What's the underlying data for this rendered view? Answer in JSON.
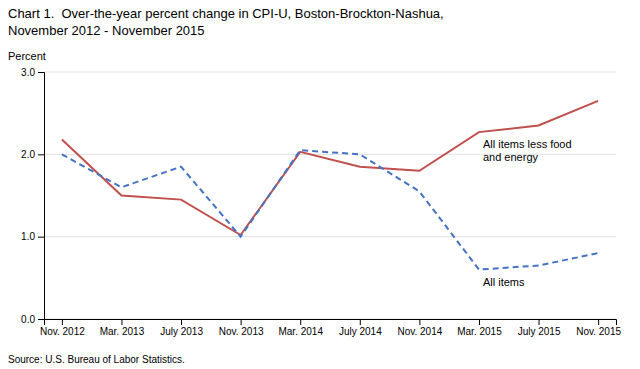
{
  "chart_data": {
    "type": "line",
    "title": "Chart 1.  Over-the-year percent change in CPI-U, Boston-Brockton-Nashua,",
    "subtitle": "November 2012 - November 2015",
    "y_label": "Percent",
    "source": "Source: U.S. Bureau of Labor Statistics.",
    "categories": [
      "Nov. 2012",
      "Mar. 2013",
      "July 2013",
      "Nov. 2013",
      "Mar. 2014",
      "July 2014",
      "Nov. 2014",
      "Mar. 2015",
      "July 2015",
      "Nov. 2015"
    ],
    "series": [
      {
        "name": "All items less food\nand energy",
        "color": "#C0504D",
        "line_style": "solid",
        "values": [
          2.18,
          1.5,
          1.45,
          1.02,
          2.03,
          1.85,
          1.8,
          2.27,
          2.35,
          2.65
        ]
      },
      {
        "name": "All items",
        "color": "#4472C4",
        "line_style": "dashed",
        "values": [
          2.0,
          1.6,
          1.85,
          1.0,
          2.05,
          2.0,
          1.55,
          0.6,
          0.65,
          0.8
        ]
      }
    ],
    "ylim": [
      0.0,
      3.0
    ],
    "yticks": [
      {
        "value": 0.0,
        "label": "0.0"
      },
      {
        "value": 1.0,
        "label": "1.0"
      },
      {
        "value": 2.0,
        "label": "2.0"
      },
      {
        "value": 3.0,
        "label": "3.0"
      }
    ],
    "grid": true
  }
}
